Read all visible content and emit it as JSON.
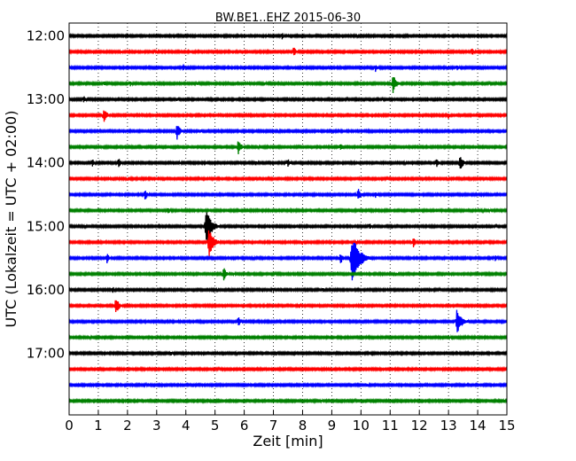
{
  "chart_data": {
    "type": "line",
    "title": "BW.BE1..EHZ 2015-06-30",
    "xlabel": "Zeit  [min]",
    "ylabel": "UTC (Lokalzeit = UTC + 02:00)",
    "xlim": [
      0,
      15
    ],
    "x_ticks": [
      "0",
      "1",
      "2",
      "3",
      "4",
      "5",
      "6",
      "7",
      "8",
      "9",
      "10",
      "11",
      "12",
      "13",
      "14",
      "15"
    ],
    "y_ticks": [
      {
        "label": "12:00",
        "row": 0
      },
      {
        "label": "13:00",
        "row": 4
      },
      {
        "label": "14:00",
        "row": 8
      },
      {
        "label": "15:00",
        "row": 12
      },
      {
        "label": "16:00",
        "row": 16
      },
      {
        "label": "17:00",
        "row": 20
      }
    ],
    "grid": "vertical dotted lines at each minute",
    "row_interval_min": 15,
    "colors": [
      "#000000",
      "#ff0000",
      "#0000ff",
      "#008000"
    ],
    "traces": [
      {
        "start": "12:00",
        "events": [
          [
            6.8,
            2
          ],
          [
            7.3,
            4
          ]
        ]
      },
      {
        "start": "12:15",
        "events": [
          [
            1.8,
            2
          ],
          [
            3.0,
            2
          ],
          [
            7.7,
            6
          ],
          [
            13.8,
            5
          ]
        ]
      },
      {
        "start": "12:30",
        "events": [
          [
            3.9,
            5
          ],
          [
            10.5,
            5
          ],
          [
            13.3,
            4
          ]
        ]
      },
      {
        "start": "12:45",
        "events": [
          [
            1.2,
            3
          ],
          [
            2.1,
            4
          ],
          [
            4.4,
            3
          ],
          [
            6.7,
            3
          ],
          [
            11.1,
            11
          ]
        ]
      },
      {
        "start": "13:00",
        "events": [
          [
            0.5,
            5
          ],
          [
            3.7,
            3
          ]
        ]
      },
      {
        "start": "13:15",
        "events": [
          [
            1.2,
            9
          ],
          [
            13.0,
            4
          ]
        ]
      },
      {
        "start": "13:30",
        "events": [
          [
            3.7,
            10
          ],
          [
            4.5,
            3
          ]
        ]
      },
      {
        "start": "13:45",
        "events": [
          [
            5.8,
            9
          ],
          [
            9.3,
            5
          ]
        ]
      },
      {
        "start": "14:00",
        "events": [
          [
            0.8,
            5
          ],
          [
            1.7,
            6
          ],
          [
            6.4,
            3
          ],
          [
            7.5,
            5
          ],
          [
            12.6,
            6
          ],
          [
            13.4,
            9
          ]
        ]
      },
      {
        "start": "14:15",
        "events": [
          [
            2.0,
            2
          ],
          [
            6.4,
            2
          ]
        ]
      },
      {
        "start": "14:30",
        "events": [
          [
            2.6,
            7
          ],
          [
            9.9,
            8
          ],
          [
            10.5,
            4
          ]
        ]
      },
      {
        "start": "14:45",
        "events": [
          [
            3.4,
            4
          ]
        ]
      },
      {
        "start": "15:00",
        "events": [
          [
            4.7,
            20
          ],
          [
            10.3,
            4
          ]
        ]
      },
      {
        "start": "15:15",
        "events": [
          [
            4.8,
            16
          ],
          [
            8.0,
            3
          ],
          [
            11.8,
            6
          ]
        ]
      },
      {
        "start": "15:30",
        "events": [
          [
            1.3,
            6
          ],
          [
            9.3,
            7
          ],
          [
            9.7,
            28
          ],
          [
            14.6,
            4
          ]
        ]
      },
      {
        "start": "15:45",
        "events": [
          [
            5.3,
            8
          ],
          [
            11.2,
            3
          ]
        ]
      },
      {
        "start": "16:00",
        "events": [
          [
            1.5,
            4
          ],
          [
            7.0,
            3
          ],
          [
            8.7,
            3
          ]
        ]
      },
      {
        "start": "16:15",
        "events": [
          [
            1.6,
            10
          ],
          [
            7.9,
            3
          ]
        ]
      },
      {
        "start": "16:30",
        "events": [
          [
            5.8,
            6
          ],
          [
            13.3,
            16
          ]
        ]
      },
      {
        "start": "16:45",
        "events": [
          [
            3.0,
            2
          ]
        ]
      },
      {
        "start": "17:00",
        "events": [
          [
            3.5,
            3
          ],
          [
            7.1,
            3
          ],
          [
            10.4,
            2
          ]
        ]
      },
      {
        "start": "17:15",
        "events": [
          [
            9.0,
            2
          ]
        ]
      },
      {
        "start": "17:30",
        "events": [
          [
            10.2,
            3
          ],
          [
            12.2,
            2
          ]
        ]
      },
      {
        "start": "17:45",
        "events": [
          [
            14.9,
            2
          ]
        ]
      }
    ]
  }
}
